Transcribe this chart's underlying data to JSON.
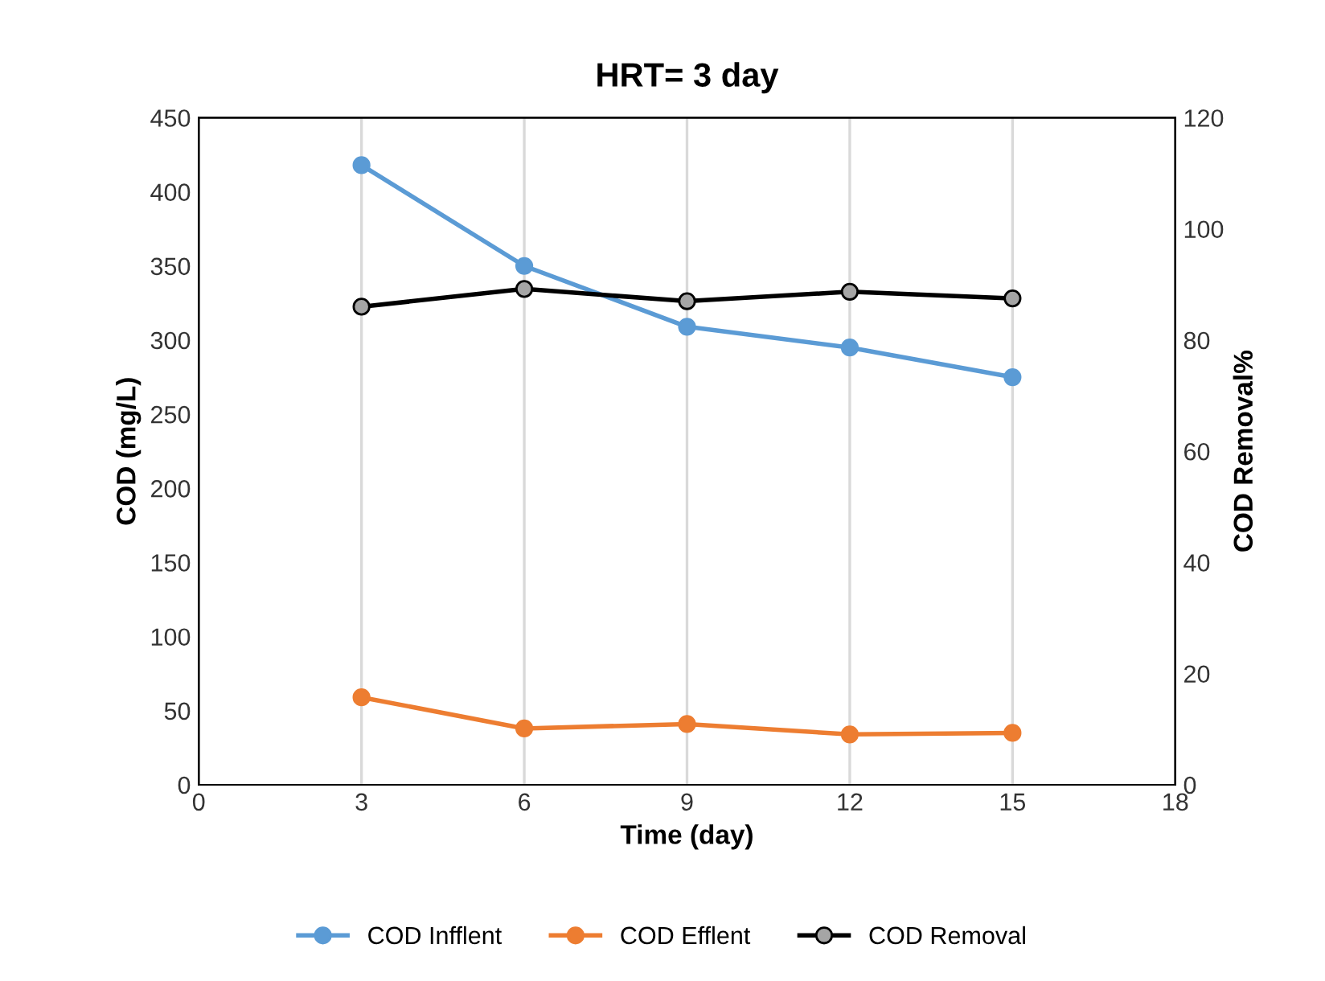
{
  "chart_data": {
    "type": "line",
    "title": "HRT= 3 day",
    "xlabel": "Time (day)",
    "ylabel": "COD (mg/L)",
    "y2label": "COD Removal%",
    "x": [
      3,
      6,
      9,
      12,
      15
    ],
    "series": [
      {
        "name": "COD Infflent",
        "color": "#5b9bd5",
        "values": [
          418,
          350,
          309,
          295,
          275
        ]
      },
      {
        "name": "COD Efflent",
        "color": "#ed7d31",
        "values": [
          59,
          38,
          41,
          34,
          35
        ]
      },
      {
        "name": "COD Removal",
        "color": "#000000",
        "axis": "y2",
        "values": [
          86,
          89.2,
          87,
          88.7,
          87.5
        ]
      }
    ],
    "xlim": [
      0,
      18
    ],
    "xticks": [
      0,
      3,
      6,
      9,
      12,
      15,
      18
    ],
    "ylim": [
      0,
      450
    ],
    "yticks": [
      0,
      50,
      100,
      150,
      200,
      250,
      300,
      350,
      400,
      450
    ],
    "y2lim": [
      0,
      120
    ],
    "y2ticks": [
      0,
      20,
      40,
      60,
      80,
      100,
      120
    ],
    "grid": "x",
    "legend": "bottom",
    "marker": "circle",
    "line_style": "solid"
  }
}
